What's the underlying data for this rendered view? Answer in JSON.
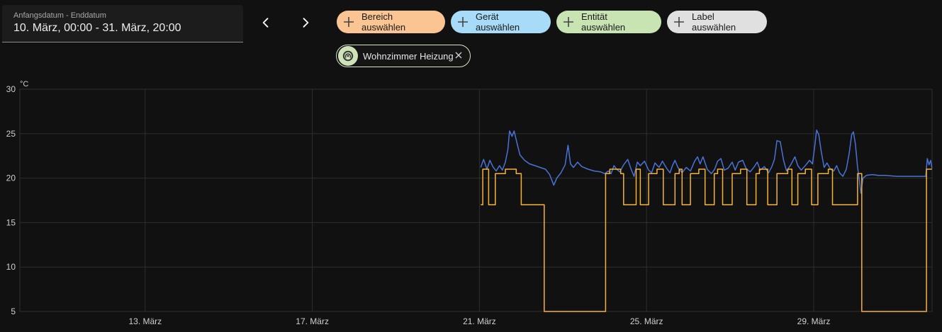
{
  "date_range": {
    "label": "Anfangsdatum - Enddatum",
    "value": "10. März, 00:00 - 31. März, 20:00"
  },
  "nav": {
    "prev_icon": "chevron-left-icon",
    "next_icon": "chevron-right-icon"
  },
  "target_chips": [
    {
      "label": "Bereich auswählen",
      "color": "#fbc593"
    },
    {
      "label": "Gerät auswählen",
      "color": "#a7dbf8"
    },
    {
      "label": "Entität auswählen",
      "color": "#c9e4b3"
    },
    {
      "label": "Label auswählen",
      "color": "#e0e0e0"
    }
  ],
  "selected_entity": {
    "label": "Wohnzimmer Heizung",
    "icon": "thermostat-icon",
    "remove_icon": "close-icon"
  },
  "colors": {
    "current_temperature": "#4a72d6",
    "target_temperature": "#f5b335",
    "grid": "#2e2e2e",
    "axis_text": "#cfcfcf"
  },
  "chart_data": {
    "type": "line",
    "y_unit": "°C",
    "ylim": [
      5,
      30
    ],
    "y_ticks": [
      30,
      25,
      20,
      15,
      10,
      5
    ],
    "x_range": [
      "10. März 00:00",
      "31. März 20:00"
    ],
    "x_tick_labels": [
      "13. März",
      "17. März",
      "21. März",
      "25. März",
      "29. März"
    ],
    "x_ticks_day": [
      13,
      17,
      21,
      25,
      29
    ],
    "x_start_day": 10,
    "x_end_day": 31.8333,
    "grid": true,
    "series": [
      {
        "color": "#4a72d6",
        "step": false,
        "points": [
          [
            21.03,
            21.2
          ],
          [
            21.1,
            22.1
          ],
          [
            21.18,
            21.0
          ],
          [
            21.25,
            22.0
          ],
          [
            21.32,
            21.3
          ],
          [
            21.4,
            20.8
          ],
          [
            21.48,
            21.4
          ],
          [
            21.55,
            20.9
          ],
          [
            21.62,
            21.8
          ],
          [
            21.68,
            23.2
          ],
          [
            21.72,
            25.3
          ],
          [
            21.78,
            24.7
          ],
          [
            21.83,
            25.3
          ],
          [
            21.9,
            23.9
          ],
          [
            21.97,
            22.6
          ],
          [
            22.08,
            22.0
          ],
          [
            22.2,
            21.6
          ],
          [
            22.33,
            21.4
          ],
          [
            22.45,
            21.2
          ],
          [
            22.58,
            21.0
          ],
          [
            22.68,
            20.4
          ],
          [
            22.78,
            19.2
          ],
          [
            22.85,
            20.0
          ],
          [
            22.95,
            20.6
          ],
          [
            23.05,
            21.5
          ],
          [
            23.12,
            23.7
          ],
          [
            23.18,
            21.6
          ],
          [
            23.25,
            21.2
          ],
          [
            23.35,
            21.8
          ],
          [
            23.45,
            21.3
          ],
          [
            23.6,
            21.0
          ],
          [
            23.75,
            20.8
          ],
          [
            23.9,
            20.7
          ],
          [
            24.0,
            20.5
          ],
          [
            24.08,
            20.8
          ],
          [
            24.15,
            20.5
          ],
          [
            24.22,
            21.4
          ],
          [
            24.28,
            21.0
          ],
          [
            24.36,
            20.7
          ],
          [
            24.45,
            21.5
          ],
          [
            24.55,
            22.1
          ],
          [
            24.63,
            21.0
          ],
          [
            24.7,
            20.2
          ],
          [
            24.78,
            21.8
          ],
          [
            24.85,
            21.4
          ],
          [
            24.95,
            21.9
          ],
          [
            25.05,
            20.9
          ],
          [
            25.12,
            20.6
          ],
          [
            25.2,
            21.7
          ],
          [
            25.3,
            21.2
          ],
          [
            25.38,
            21.9
          ],
          [
            25.48,
            21.1
          ],
          [
            25.56,
            20.6
          ],
          [
            25.62,
            21.4
          ],
          [
            25.68,
            22.0
          ],
          [
            25.75,
            21.2
          ],
          [
            25.85,
            20.6
          ],
          [
            25.95,
            21.2
          ],
          [
            26.05,
            20.8
          ],
          [
            26.15,
            21.9
          ],
          [
            26.22,
            22.4
          ],
          [
            26.28,
            21.6
          ],
          [
            26.35,
            22.4
          ],
          [
            26.45,
            21.0
          ],
          [
            26.55,
            20.5
          ],
          [
            26.63,
            21.0
          ],
          [
            26.7,
            21.9
          ],
          [
            26.78,
            22.2
          ],
          [
            26.86,
            20.9
          ],
          [
            26.95,
            21.1
          ],
          [
            27.05,
            21.8
          ],
          [
            27.12,
            20.9
          ],
          [
            27.2,
            21.8
          ],
          [
            27.3,
            22.0
          ],
          [
            27.38,
            21.1
          ],
          [
            27.48,
            20.7
          ],
          [
            27.58,
            21.3
          ],
          [
            27.65,
            21.8
          ],
          [
            27.72,
            20.9
          ],
          [
            27.82,
            21.3
          ],
          [
            27.92,
            20.6
          ],
          [
            28.0,
            21.3
          ],
          [
            28.06,
            22.1
          ],
          [
            28.12,
            24.2
          ],
          [
            28.2,
            24.1
          ],
          [
            28.28,
            22.0
          ],
          [
            28.35,
            20.8
          ],
          [
            28.45,
            21.5
          ],
          [
            28.55,
            22.4
          ],
          [
            28.62,
            21.4
          ],
          [
            28.7,
            20.9
          ],
          [
            28.8,
            21.4
          ],
          [
            28.9,
            22.0
          ],
          [
            28.97,
            21.6
          ],
          [
            29.02,
            23.4
          ],
          [
            29.07,
            25.4
          ],
          [
            29.12,
            24.9
          ],
          [
            29.18,
            23.0
          ],
          [
            29.25,
            21.2
          ],
          [
            29.32,
            21.7
          ],
          [
            29.4,
            21.0
          ],
          [
            29.48,
            20.8
          ],
          [
            29.55,
            21.4
          ],
          [
            29.62,
            20.6
          ],
          [
            29.7,
            20.2
          ],
          [
            29.78,
            21.0
          ],
          [
            29.85,
            22.8
          ],
          [
            29.91,
            24.9
          ],
          [
            29.95,
            25.2
          ],
          [
            30.0,
            23.8
          ],
          [
            30.05,
            21.2
          ],
          [
            30.1,
            19.6
          ],
          [
            30.13,
            18.3
          ],
          [
            30.18,
            20.0
          ],
          [
            30.26,
            20.3
          ],
          [
            30.4,
            20.4
          ],
          [
            30.55,
            20.3
          ],
          [
            30.7,
            20.3
          ],
          [
            31.0,
            20.2
          ],
          [
            31.3,
            20.2
          ],
          [
            31.55,
            20.2
          ],
          [
            31.68,
            20.2
          ],
          [
            31.72,
            22.2
          ],
          [
            31.76,
            21.5
          ],
          [
            31.8,
            22.0
          ],
          [
            31.83,
            21.1
          ]
        ]
      },
      {
        "color": "#f5b335",
        "step": true,
        "points": [
          [
            21.03,
            17.0
          ],
          [
            21.08,
            21.0
          ],
          [
            21.22,
            17.0
          ],
          [
            21.38,
            20.5
          ],
          [
            21.62,
            21.0
          ],
          [
            21.88,
            20.5
          ],
          [
            22.0,
            17.0
          ],
          [
            22.55,
            5.0
          ],
          [
            24.02,
            20.5
          ],
          [
            24.12,
            21.0
          ],
          [
            24.38,
            20.5
          ],
          [
            24.45,
            17.0
          ],
          [
            24.75,
            21.0
          ],
          [
            24.85,
            17.0
          ],
          [
            25.05,
            20.5
          ],
          [
            25.25,
            21.0
          ],
          [
            25.4,
            17.0
          ],
          [
            25.68,
            20.5
          ],
          [
            25.78,
            21.0
          ],
          [
            25.85,
            17.0
          ],
          [
            26.05,
            20.5
          ],
          [
            26.25,
            21.0
          ],
          [
            26.4,
            17.0
          ],
          [
            26.62,
            20.5
          ],
          [
            26.7,
            21.0
          ],
          [
            26.82,
            17.0
          ],
          [
            27.05,
            20.5
          ],
          [
            27.25,
            21.0
          ],
          [
            27.4,
            17.0
          ],
          [
            27.62,
            20.5
          ],
          [
            27.7,
            21.0
          ],
          [
            27.9,
            17.0
          ],
          [
            28.12,
            20.5
          ],
          [
            28.38,
            21.0
          ],
          [
            28.48,
            17.0
          ],
          [
            28.62,
            20.5
          ],
          [
            28.8,
            21.0
          ],
          [
            28.95,
            17.0
          ],
          [
            29.1,
            20.5
          ],
          [
            29.35,
            21.0
          ],
          [
            29.45,
            17.0
          ],
          [
            30.05,
            20.5
          ],
          [
            30.15,
            5.0
          ],
          [
            31.7,
            21.0
          ],
          [
            31.83,
            21.0
          ]
        ]
      }
    ]
  }
}
